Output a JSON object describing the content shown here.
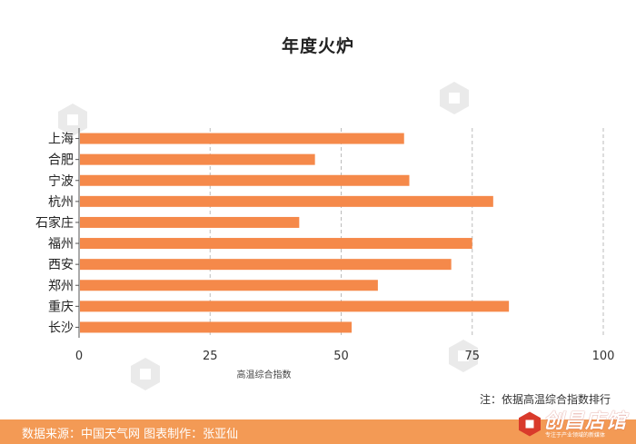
{
  "title": "年度火炉",
  "note": "注：依据高温综合指数排行",
  "footer": {
    "text": "数据来源：中国天气网  图表制作：张亚仙",
    "logo_text": "创昌店馆",
    "logo_sub": "专注于产业领域的新媒体"
  },
  "watermark": {
    "text": "创昌店馆",
    "icon": "hexagon-logo-icon"
  },
  "colors": {
    "bar": "#f5894a",
    "grid": "#bbbbbb",
    "footer": "#f39a55"
  },
  "chart_data": {
    "type": "bar",
    "orientation": "horizontal",
    "categories": [
      "上海",
      "合肥",
      "宁波",
      "杭州",
      "石家庄",
      "福州",
      "西安",
      "郑州",
      "重庆",
      "长沙"
    ],
    "values": [
      62,
      45,
      63,
      79,
      42,
      75,
      71,
      57,
      82,
      52
    ],
    "xlabel": "高温综合指数",
    "xlim": [
      0,
      100
    ],
    "xticks": [
      0,
      25,
      50,
      75,
      100
    ],
    "grid": "vertical-dashed",
    "legend": "none"
  }
}
